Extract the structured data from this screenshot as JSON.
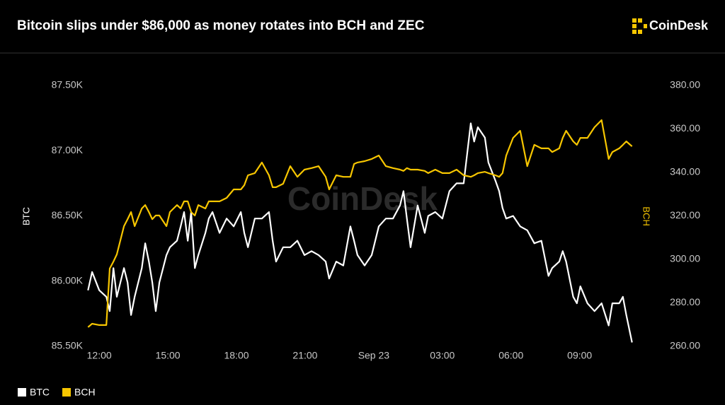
{
  "chart_data": {
    "type": "line",
    "title": "Bitcoin slips under $86,000 as money rotates into BCH and ZEC",
    "logo": "CoinDesk",
    "watermark": "CoinDesk",
    "ylabel": "BTC",
    "y2label": "BCH",
    "x": [
      11.51,
      11.69,
      12.0,
      12.31,
      12.46,
      12.62,
      12.77,
      13.08,
      13.24,
      13.39,
      13.55,
      13.86,
      14.01,
      14.17,
      14.32,
      14.47,
      14.63,
      14.94,
      15.09,
      15.4,
      15.56,
      15.71,
      15.87,
      16.02,
      16.18,
      16.33,
      16.64,
      16.79,
      16.95,
      17.26,
      17.57,
      17.88,
      18.19,
      18.34,
      18.5,
      18.8,
      19.11,
      19.42,
      19.58,
      19.73,
      20.04,
      20.35,
      20.66,
      20.97,
      21.28,
      21.59,
      21.9,
      22.05,
      22.36,
      22.67,
      22.98,
      23.14,
      23.29,
      23.6,
      23.91,
      24.22,
      24.53,
      24.84,
      25.15,
      25.3,
      25.45,
      25.61,
      25.92,
      26.23,
      26.38,
      26.69,
      27.0,
      27.31,
      27.62,
      27.93,
      28.24,
      28.39,
      28.55,
      28.86,
      29.01,
      29.32,
      29.48,
      29.63,
      29.79,
      30.09,
      30.4,
      30.71,
      31.02,
      31.33,
      31.64,
      31.8,
      32.11,
      32.26,
      32.41,
      32.72,
      32.88,
      33.03,
      33.34,
      33.65,
      33.96,
      34.27,
      34.43,
      34.73,
      34.89,
      35.04,
      35.29
    ],
    "series": [
      {
        "name": "BTC",
        "color": "#ffffff",
        "axis": "y",
        "values": [
          85930,
          86070,
          85930,
          85880,
          85770,
          86100,
          85880,
          86100,
          85990,
          85740,
          85880,
          86100,
          86290,
          86150,
          85990,
          85770,
          85990,
          86200,
          86260,
          86310,
          86420,
          86530,
          86310,
          86530,
          86100,
          86200,
          86370,
          86480,
          86530,
          86370,
          86480,
          86420,
          86530,
          86370,
          86260,
          86480,
          86480,
          86530,
          86310,
          86150,
          86260,
          86260,
          86310,
          86200,
          86230,
          86200,
          86150,
          86020,
          86150,
          86120,
          86420,
          86310,
          86200,
          86120,
          86200,
          86420,
          86480,
          86480,
          86580,
          86690,
          86480,
          86260,
          86580,
          86370,
          86500,
          86530,
          86480,
          86690,
          86750,
          86750,
          87210,
          87070,
          87180,
          87100,
          86910,
          86770,
          86690,
          86560,
          86480,
          86500,
          86420,
          86390,
          86290,
          86310,
          86040,
          86100,
          86150,
          86230,
          86150,
          85880,
          85830,
          85960,
          85830,
          85770,
          85830,
          85660,
          85830,
          85830,
          85880,
          85740,
          85530
        ]
      },
      {
        "name": "BCH",
        "color": "#f7c600",
        "axis": "y2",
        "values": [
          268.8,
          270.4,
          269.8,
          269.8,
          295.8,
          299.0,
          302.3,
          315.3,
          318.5,
          321.8,
          315.3,
          323.4,
          325.0,
          321.8,
          318.5,
          320.2,
          320.2,
          315.3,
          321.8,
          325.0,
          323.4,
          326.7,
          326.7,
          321.8,
          320.2,
          325.0,
          323.4,
          326.7,
          326.7,
          326.7,
          328.3,
          332.2,
          332.2,
          334.1,
          338.7,
          339.7,
          344.6,
          338.7,
          333.2,
          333.2,
          334.8,
          342.9,
          338.0,
          341.3,
          342.0,
          342.9,
          338.0,
          332.2,
          338.7,
          338.0,
          338.0,
          343.9,
          344.6,
          345.2,
          346.2,
          347.8,
          342.9,
          342.0,
          341.3,
          340.7,
          342.0,
          341.3,
          341.3,
          340.7,
          339.7,
          341.3,
          339.7,
          339.7,
          341.3,
          338.7,
          338.0,
          338.7,
          339.7,
          340.3,
          339.7,
          338.7,
          338.0,
          339.7,
          347.8,
          355.9,
          359.2,
          342.9,
          352.7,
          351.1,
          351.1,
          349.4,
          351.1,
          355.9,
          359.2,
          354.3,
          352.7,
          355.9,
          355.9,
          360.8,
          364.1,
          346.2,
          349.4,
          351.1,
          352.7,
          354.3,
          352.0
        ]
      }
    ],
    "xlim": [
      11.5,
      35.3
    ],
    "xticks": [
      {
        "value": 12,
        "label": "12:00"
      },
      {
        "value": 15,
        "label": "15:00"
      },
      {
        "value": 18,
        "label": "18:00"
      },
      {
        "value": 21,
        "label": "21:00"
      },
      {
        "value": 24,
        "label": "Sep 23"
      },
      {
        "value": 27,
        "label": "03:00"
      },
      {
        "value": 30,
        "label": "06:00"
      },
      {
        "value": 33,
        "label": "09:00"
      }
    ],
    "ylim": [
      85500,
      87500
    ],
    "yticks": [
      {
        "value": 85500,
        "label": "85.50K"
      },
      {
        "value": 86000,
        "label": "86.00K"
      },
      {
        "value": 86500,
        "label": "86.50K"
      },
      {
        "value": 87000,
        "label": "87.00K"
      },
      {
        "value": 87500,
        "label": "87.50K"
      }
    ],
    "y2lim": [
      260,
      380
    ],
    "y2ticks": [
      {
        "value": 260,
        "label": "260.00"
      },
      {
        "value": 280,
        "label": "280.00"
      },
      {
        "value": 300,
        "label": "300.00"
      },
      {
        "value": 320,
        "label": "320.00"
      },
      {
        "value": 340,
        "label": "340.00"
      },
      {
        "value": 360,
        "label": "360.00"
      },
      {
        "value": 380,
        "label": "380.00"
      }
    ],
    "grid": false
  }
}
